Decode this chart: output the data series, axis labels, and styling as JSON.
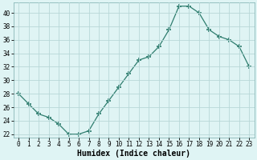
{
  "x": [
    0,
    1,
    2,
    3,
    4,
    5,
    6,
    7,
    8,
    9,
    10,
    11,
    12,
    13,
    14,
    15,
    16,
    17,
    18,
    19,
    20,
    21,
    22,
    23
  ],
  "y": [
    28,
    26.5,
    25,
    24.5,
    23.5,
    22,
    22,
    22.5,
    25,
    27,
    29,
    31,
    33,
    33.5,
    35,
    37.5,
    41,
    41,
    40,
    37.5,
    36.5,
    36,
    35,
    32
  ],
  "line_color": "#2e7d6e",
  "marker": "+",
  "marker_size": 4,
  "bg_color": "#dff4f4",
  "grid_color": "#b8d8d8",
  "xlabel": "Humidex (Indice chaleur)",
  "ylim": [
    21.5,
    41.5
  ],
  "xlim": [
    -0.5,
    23.5
  ],
  "yticks": [
    22,
    24,
    26,
    28,
    30,
    32,
    34,
    36,
    38,
    40
  ],
  "xticks": [
    0,
    1,
    2,
    3,
    4,
    5,
    6,
    7,
    8,
    9,
    10,
    11,
    12,
    13,
    14,
    15,
    16,
    17,
    18,
    19,
    20,
    21,
    22,
    23
  ],
  "tick_fontsize": 5.5,
  "xlabel_fontsize": 7.0,
  "xlabel_fontweight": "bold"
}
